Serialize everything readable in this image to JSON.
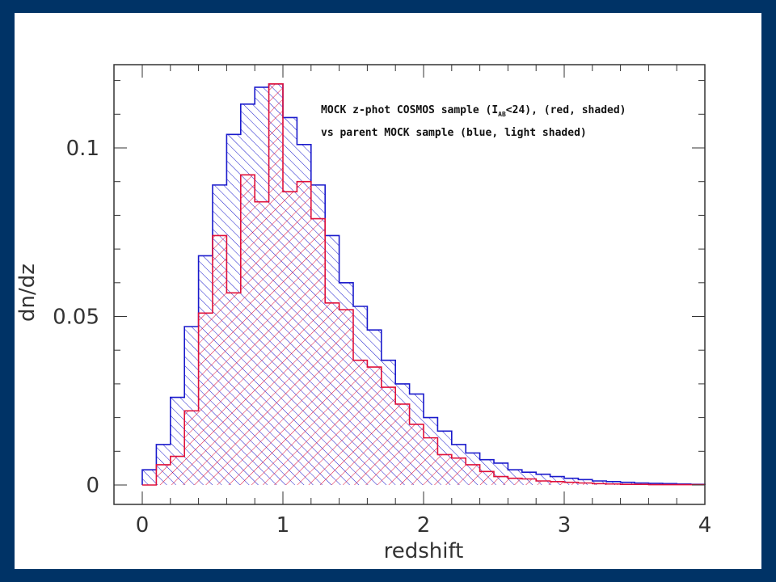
{
  "chart_data": {
    "type": "histogram",
    "xlabel": "redshift",
    "ylabel": "dn/dz",
    "xlim": [
      0,
      4
    ],
    "ylim": [
      0,
      0.12
    ],
    "x_ticks": [
      0,
      1,
      2,
      3,
      4
    ],
    "x_tick_labels": [
      "0",
      "1",
      "2",
      "3",
      "4"
    ],
    "y_ticks": [
      0,
      0.05,
      0.1
    ],
    "y_tick_labels": [
      "0",
      "0.05",
      "0.1"
    ],
    "bin_width": 0.1,
    "bin_start": 0,
    "legend": {
      "line1_prefix": "MOCK z-phot COSMOS sample (I",
      "line1_sub": "AB",
      "line1_suffix": "<24), (red, shaded)",
      "line2": "vs parent MOCK sample (blue, light shaded)"
    },
    "series": [
      {
        "name": "parent MOCK sample",
        "color": "#1a1acc",
        "values": [
          0.0045,
          0.012,
          0.026,
          0.047,
          0.068,
          0.089,
          0.104,
          0.113,
          0.118,
          0.119,
          0.109,
          0.101,
          0.089,
          0.074,
          0.06,
          0.053,
          0.046,
          0.037,
          0.03,
          0.027,
          0.02,
          0.016,
          0.012,
          0.0095,
          0.0075,
          0.0065,
          0.0045,
          0.0038,
          0.0032,
          0.0025,
          0.002,
          0.0016,
          0.0012,
          0.001,
          0.0008,
          0.0006,
          0.0005,
          0.0004,
          0.0003,
          0.0002
        ]
      },
      {
        "name": "MOCK z-phot COSMOS sample",
        "color": "#e0103a",
        "values": [
          0.0,
          0.006,
          0.0085,
          0.022,
          0.051,
          0.074,
          0.057,
          0.092,
          0.084,
          0.119,
          0.087,
          0.09,
          0.079,
          0.054,
          0.052,
          0.037,
          0.035,
          0.029,
          0.024,
          0.018,
          0.014,
          0.009,
          0.008,
          0.006,
          0.004,
          0.0025,
          0.002,
          0.0018,
          0.0012,
          0.001,
          0.0008,
          0.0006,
          0.0004,
          0.0003,
          0.0002,
          0.0002,
          0.0001,
          0.0001,
          0.0001,
          0.0001
        ]
      }
    ]
  }
}
